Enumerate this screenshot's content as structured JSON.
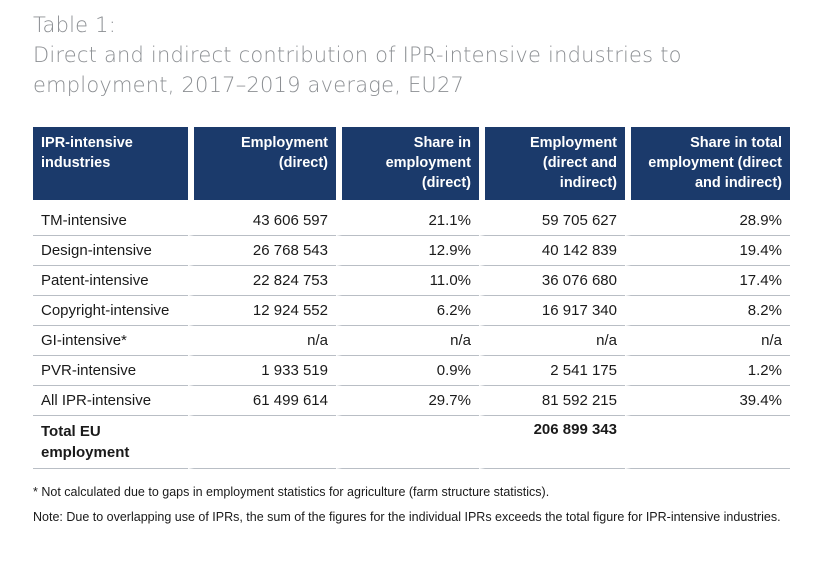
{
  "title": {
    "line1": "Table 1:",
    "line2": "Direct and indirect contribution of IPR-intensive industries to",
    "line3": "employment, 2017–2019 average, EU27"
  },
  "table": {
    "headers": [
      [
        "IPR-intensive",
        "industries",
        ""
      ],
      [
        "Employment",
        "(direct)",
        ""
      ],
      [
        "Share in",
        "employment",
        "(direct)"
      ],
      [
        "Employment",
        "(direct and",
        "indirect)"
      ],
      [
        "Share in total",
        "employment (direct",
        "and indirect)"
      ]
    ],
    "rows": [
      [
        "TM-intensive",
        "43 606 597",
        "21.1%",
        "59 705 627",
        "28.9%"
      ],
      [
        "Design-intensive",
        "26 768 543",
        "12.9%",
        "40 142 839",
        "19.4%"
      ],
      [
        "Patent-intensive",
        "22 824 753",
        "11.0%",
        "36 076 680",
        "17.4%"
      ],
      [
        "Copyright-intensive",
        "12 924 552",
        "6.2%",
        "16 917 340",
        "8.2%"
      ],
      [
        "GI-intensive*",
        "n/a",
        "n/a",
        "n/a",
        "n/a"
      ],
      [
        "PVR-intensive",
        "1 933 519",
        "0.9%",
        "2 541 175",
        "1.2%"
      ],
      [
        "All IPR-intensive",
        "61 499 614",
        "29.7%",
        "81 592 215",
        "39.4%"
      ]
    ],
    "total": {
      "label_line1": "Total EU",
      "label_line2": "employment",
      "direct": "",
      "share_direct": "",
      "total_value": "206 899 343",
      "share_total": ""
    }
  },
  "footnotes": {
    "asterisk": "* Not calculated due to gaps in employment statistics for agriculture (farm structure statistics).",
    "note": "Note: Due to overlapping use of IPRs, the sum of the figures for the individual IPRs exceeds the total figure for IPR-intensive industries."
  }
}
